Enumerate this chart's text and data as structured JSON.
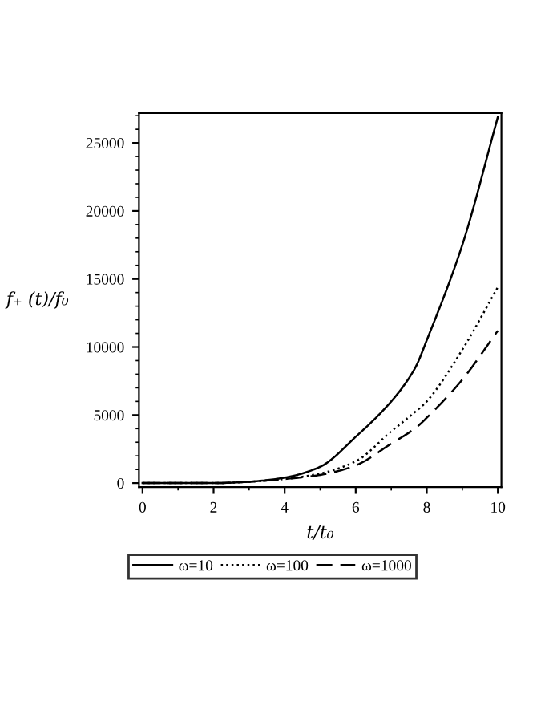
{
  "chart_data": {
    "type": "line",
    "xlabel": "t/t₀",
    "ylabel": "f₊ (t)/f₀",
    "x": [
      0,
      1,
      2,
      3,
      4,
      5,
      6,
      7,
      7.66,
      8,
      9,
      10
    ],
    "series": [
      {
        "name": "ω=10",
        "color": "#000000",
        "line_style": "solid",
        "values": [
          0,
          0,
          0,
          100,
          400,
          1200,
          3400,
          6000,
          8400,
          10500,
          17500,
          26900
        ]
      },
      {
        "name": "ω=100",
        "color": "#000000",
        "line_style": "dotted",
        "values": [
          0,
          0,
          0,
          100,
          300,
          700,
          1600,
          3800,
          5200,
          6000,
          9800,
          14400
        ]
      },
      {
        "name": "ω=1000",
        "color": "#000000",
        "line_style": "dashed",
        "values": [
          0,
          0,
          0,
          100,
          300,
          600,
          1300,
          2900,
          4000,
          4800,
          7600,
          11200
        ]
      }
    ],
    "xlim": [
      -0.1,
      10.1
    ],
    "ylim": [
      -300,
      27200
    ],
    "xticks": [
      0,
      2,
      4,
      6,
      8,
      10
    ],
    "yticks": [
      0,
      5000,
      10000,
      15000,
      20000,
      25000
    ],
    "grid": false,
    "legend": "bottom",
    "marker": "none"
  }
}
